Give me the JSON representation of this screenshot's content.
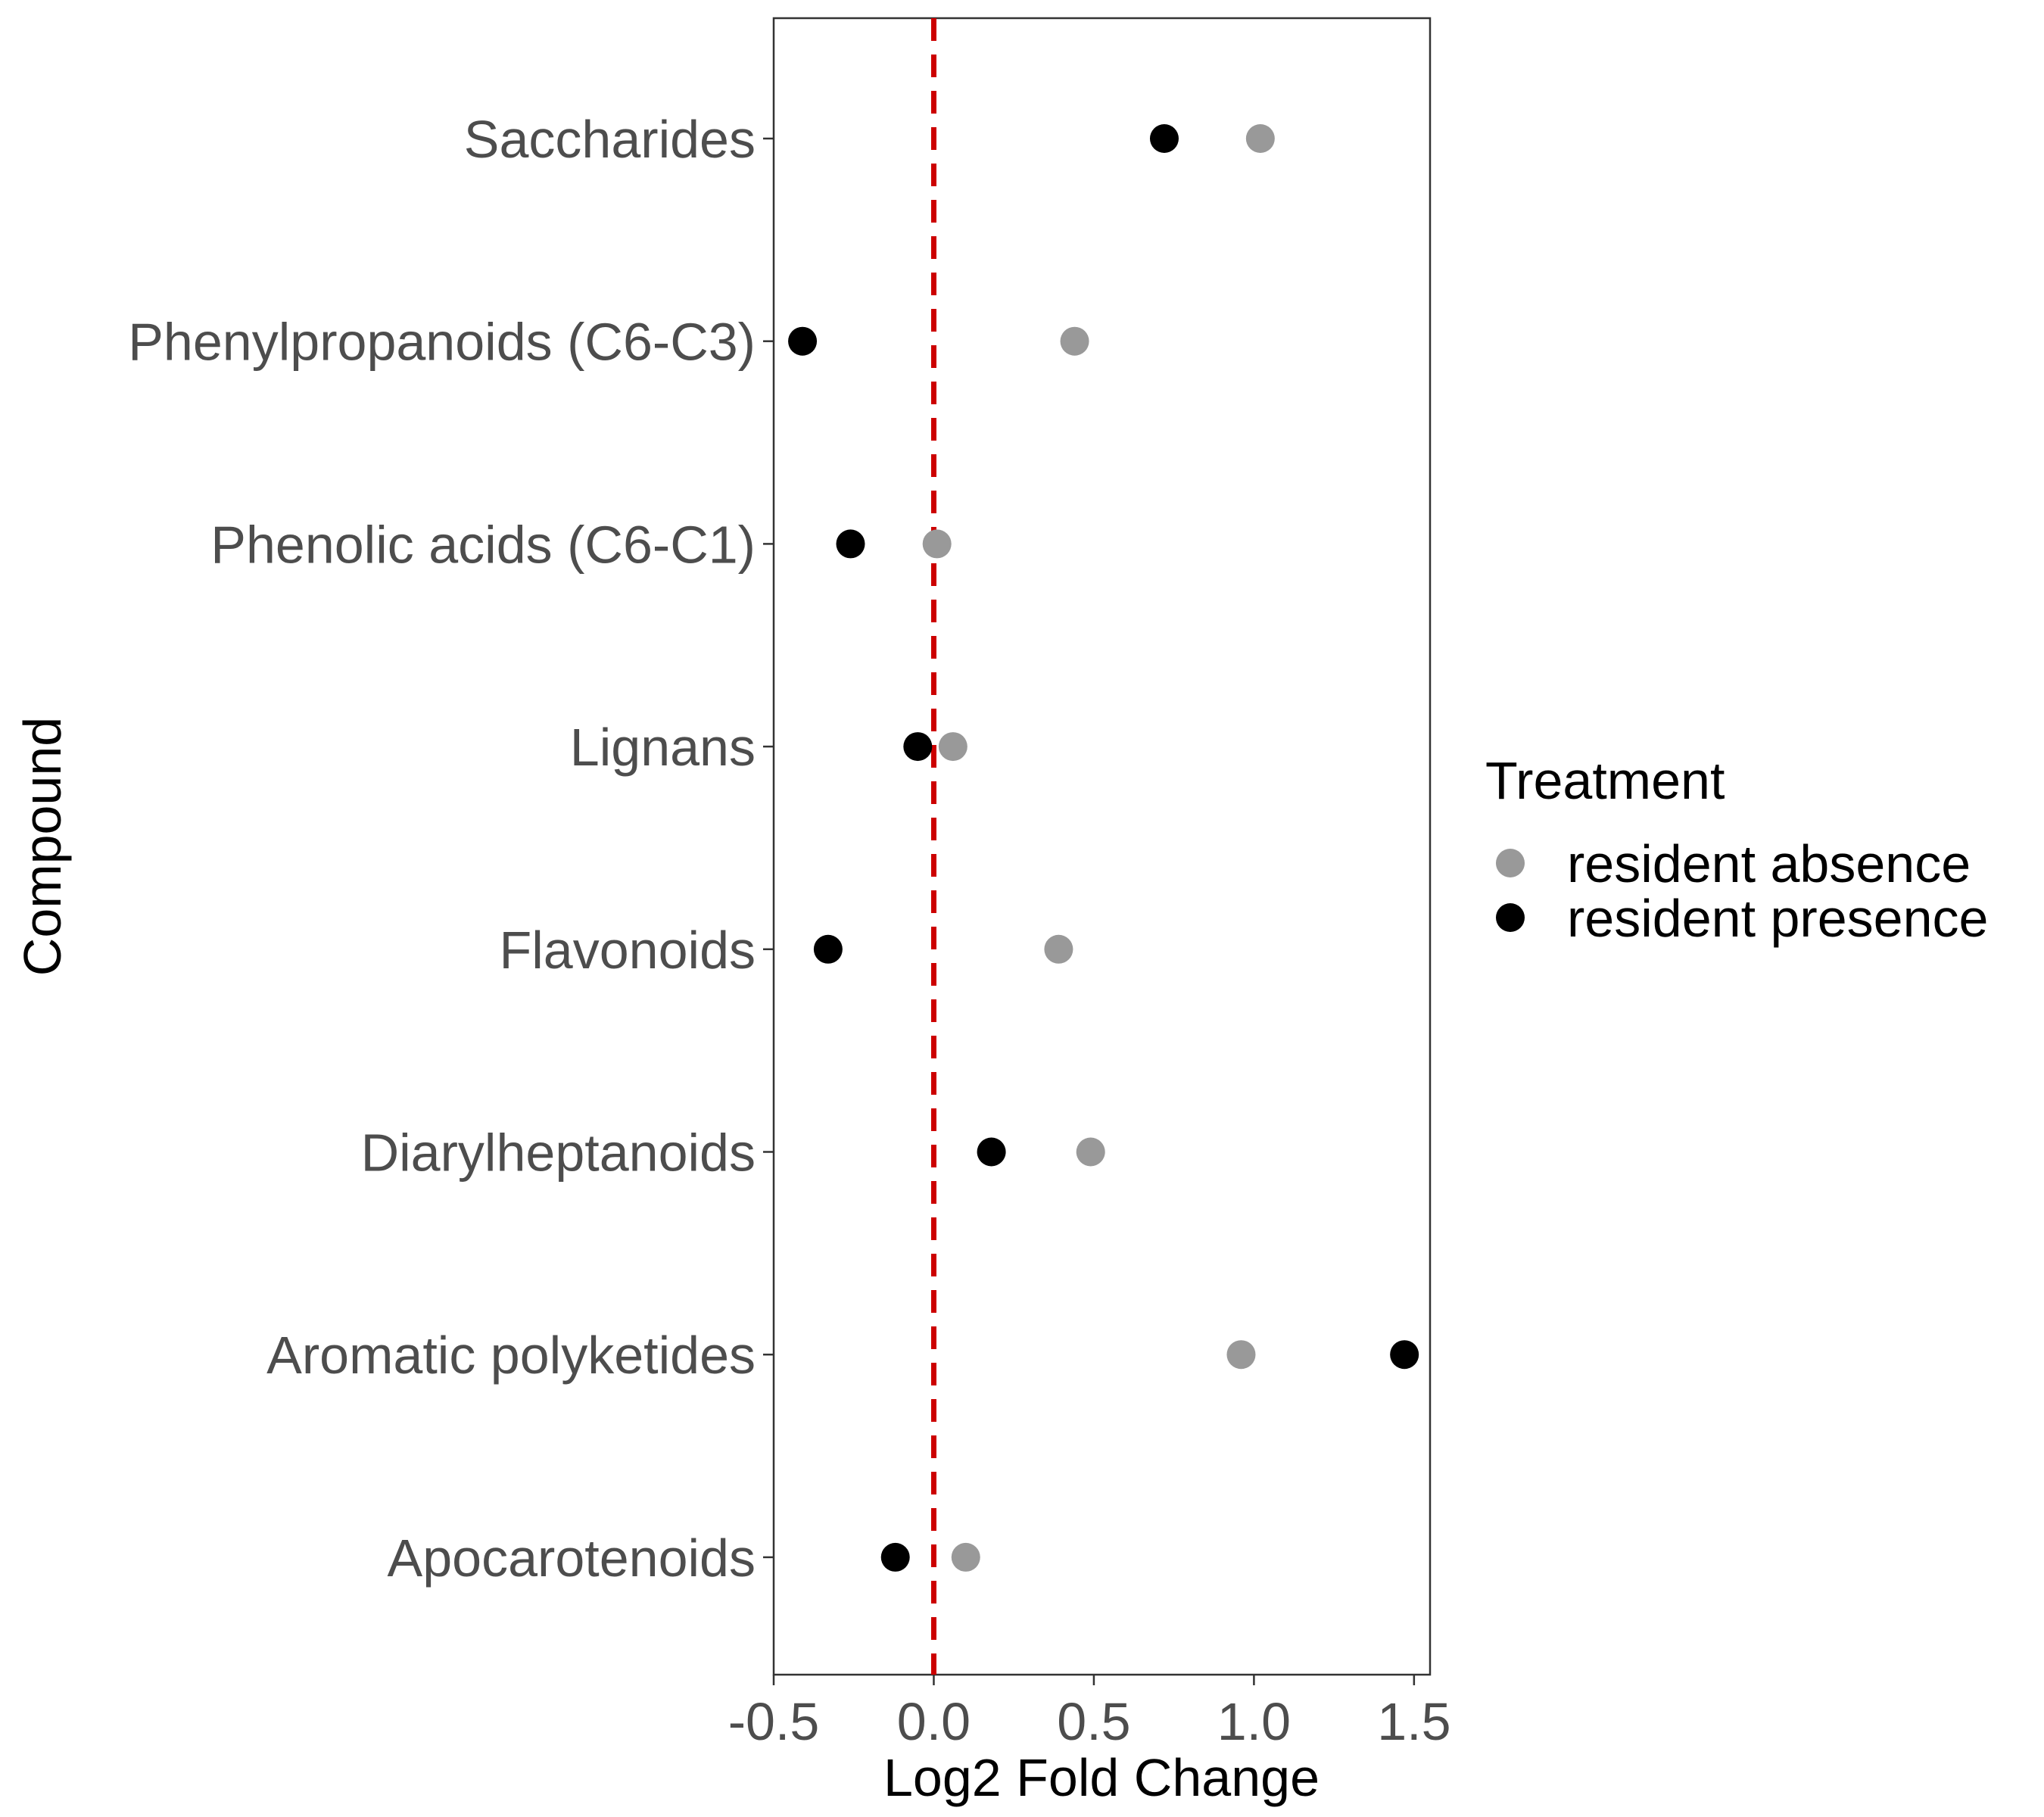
{
  "chart_data": {
    "type": "scatter",
    "xlabel": "Log2 Fold Change",
    "ylabel": "Compound",
    "xlim": [
      -0.5,
      1.55
    ],
    "xticks": [
      "-0.5",
      "0.0",
      "0.5",
      "1.0",
      "1.5"
    ],
    "xtick_values": [
      -0.5,
      0.0,
      0.5,
      1.0,
      1.5
    ],
    "reference_line": {
      "x": 0,
      "style": "dashed",
      "color": "#cc0000"
    },
    "categories": [
      "Saccharides",
      "Phenylpropanoids (C6-C3)",
      "Phenolic acids (C6-C1)",
      "Lignans",
      "Flavonoids",
      "Diarylheptanoids",
      "Aromatic polyketides",
      "Apocarotenoids"
    ],
    "legend": {
      "title": "Treatment",
      "position": "right"
    },
    "series": [
      {
        "name": "resident absence",
        "color": "#999999",
        "values": [
          1.02,
          0.44,
          0.01,
          0.06,
          0.39,
          0.49,
          0.96,
          0.1
        ]
      },
      {
        "name": "resident presence",
        "color": "#000000",
        "values": [
          0.72,
          -0.41,
          -0.26,
          -0.05,
          -0.33,
          0.18,
          1.47,
          -0.12
        ]
      }
    ],
    "grid": false
  }
}
